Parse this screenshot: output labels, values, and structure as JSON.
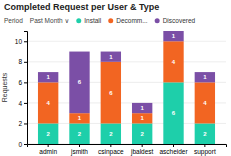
{
  "chart_data": {
    "type": "bar",
    "stacked": true,
    "title": "Completed Request per User & Type",
    "annotations": [
      "Period",
      "Past Month  ∨"
    ],
    "categories": [
      "admin",
      "jsmith",
      "csinpace",
      "jbaldest",
      "ascheider",
      "support"
    ],
    "series": [
      {
        "name": "Install",
        "color": "#1ecfaa",
        "values": [
          2,
          2,
          2,
          2,
          6,
          2
        ]
      },
      {
        "name": "Decomm...",
        "color": "#f26522",
        "values": [
          4,
          1,
          6,
          1,
          4,
          4
        ]
      },
      {
        "name": "Discovered",
        "color": "#7b4fa6",
        "values": [
          1,
          6,
          1,
          1,
          1,
          1
        ]
      }
    ],
    "ylabel": "Requests",
    "ylim": [
      0,
      11
    ],
    "yticks": [
      0,
      2,
      4,
      6,
      8,
      10
    ],
    "grid": true,
    "data_labels": true,
    "legend": "top"
  }
}
